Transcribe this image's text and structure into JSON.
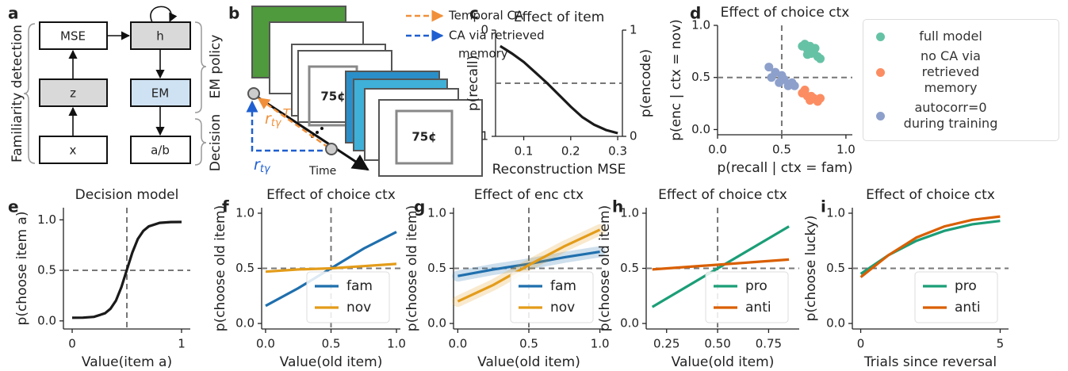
{
  "diagram_a": {
    "panel": "a",
    "nodes": [
      "MSE",
      "h",
      "z",
      "EM",
      "x",
      "a/b"
    ],
    "groups": [
      "Familiarity detection",
      "EM policy",
      "Decision"
    ]
  },
  "illustration_b": {
    "panel": "b",
    "legend": [
      {
        "lines": [
          "Temporal CA"
        ]
      },
      {
        "lines": [
          "CA via retrieved",
          "memory"
        ]
      }
    ],
    "card_text": "75¢",
    "time_label": "Time",
    "temporal_label": {
      "base": "r",
      "sub": "tγ",
      "sup": "T"
    },
    "retrieved_label": {
      "base": "r",
      "sub": "tγ"
    }
  },
  "chart_data": [
    {
      "type": "line",
      "panel": "c",
      "title": "Effect of item",
      "xlabel": "Reconstruction MSE",
      "ylabel": "p(recall)",
      "y2label": "p(encode)",
      "x": [
        0.05,
        0.075,
        0.1,
        0.125,
        0.15,
        0.175,
        0.2,
        0.225,
        0.25,
        0.275,
        0.3
      ],
      "series": [
        {
          "color": "#1a1a1a",
          "axis": "y2",
          "values": [
            0.85,
            0.78,
            0.7,
            0.6,
            0.5,
            0.39,
            0.28,
            0.18,
            0.11,
            0.06,
            0.03
          ]
        }
      ],
      "xlim": [
        0.04,
        0.31
      ],
      "xticks": [
        0.1,
        0.2,
        0.3
      ],
      "ylim": [
        1,
        0
      ],
      "yticks": [
        0,
        1
      ],
      "y2lim": [
        0,
        1
      ],
      "y2ticks": [
        0,
        1
      ],
      "hline": 0.5
    },
    {
      "type": "scatter",
      "panel": "d",
      "title": "Effect of choice ctx",
      "xlabel": "p(recall | ctx = fam)",
      "ylabel": "p(enc | ctx = nov)",
      "xlim": [
        0,
        1.05
      ],
      "ylim": [
        -0.05,
        1.0
      ],
      "xticks": [
        {
          "value": 0,
          "label": "0.0"
        },
        0.5,
        {
          "value": 1,
          "label": "1.0"
        }
      ],
      "yticks": [
        {
          "value": 0,
          "label": "0.0"
        },
        0.5,
        {
          "value": 1,
          "label": "1.0"
        }
      ],
      "hline": 0.5,
      "vline": 0.5,
      "legend": "right",
      "series": [
        {
          "name": "full model",
          "color": "#66c2a5",
          "x": [
            0.66,
            0.68,
            0.7,
            0.7,
            0.72,
            0.73,
            0.75,
            0.76,
            0.78,
            0.8
          ],
          "values": [
            0.8,
            0.82,
            0.77,
            0.72,
            0.8,
            0.73,
            0.75,
            0.78,
            0.7,
            0.68
          ]
        },
        {
          "name": "no CA via retrieved memory",
          "color": "#fc8d62",
          "x": [
            0.66,
            0.68,
            0.7,
            0.72,
            0.73,
            0.75,
            0.78,
            0.8
          ],
          "values": [
            0.35,
            0.38,
            0.32,
            0.28,
            0.32,
            0.3,
            0.27,
            0.3
          ]
        },
        {
          "name": "autocorr=0 during training",
          "color": "#8da0cb",
          "x": [
            0.4,
            0.42,
            0.45,
            0.48,
            0.5,
            0.52,
            0.55,
            0.58,
            0.6
          ],
          "values": [
            0.6,
            0.5,
            0.55,
            0.45,
            0.52,
            0.48,
            0.42,
            0.45,
            0.42
          ]
        }
      ]
    },
    {
      "type": "line",
      "panel": "e",
      "title": "Decision model",
      "xlabel": "Value(item a)",
      "ylabel": "p(choose item a)",
      "x": [
        0,
        0.1,
        0.2,
        0.3,
        0.35,
        0.4,
        0.45,
        0.5,
        0.55,
        0.6,
        0.65,
        0.7,
        0.8,
        0.9,
        1
      ],
      "series": [
        {
          "color": "#1a1a1a",
          "values": [
            0.031,
            0.032,
            0.04,
            0.075,
            0.12,
            0.2,
            0.334,
            0.505,
            0.676,
            0.81,
            0.89,
            0.935,
            0.97,
            0.978,
            0.979
          ]
        }
      ],
      "xlim": [
        -0.08,
        1.08
      ],
      "xticks": [
        0,
        1
      ],
      "ylim": [
        -0.08,
        1.12
      ],
      "yticks": [
        {
          "value": 0,
          "label": "0.0"
        },
        0.5,
        {
          "value": 1,
          "label": "1.0"
        }
      ],
      "hline": 0.5,
      "vline": 0.5
    },
    {
      "type": "line",
      "panel": "f",
      "title": "Effect of choice ctx",
      "xlabel": "Value(old item)",
      "ylabel": "p(choose old item)",
      "x": [
        0,
        0.25,
        0.5,
        0.75,
        1
      ],
      "series": [
        {
          "name": "fam",
          "color": "#1f6fad",
          "values": [
            0.16,
            0.32,
            0.5,
            0.68,
            0.83
          ]
        },
        {
          "name": "nov",
          "color": "#e39c1a",
          "values": [
            0.47,
            0.49,
            0.5,
            0.52,
            0.54
          ]
        }
      ],
      "xlim": [
        -0.03,
        1.03
      ],
      "xticks": [
        {
          "value": 0,
          "label": "0.0"
        },
        0.5,
        {
          "value": 1,
          "label": "1.0"
        }
      ],
      "ylim": [
        -0.05,
        1.05
      ],
      "yticks": [
        {
          "value": 0,
          "label": "0.0"
        },
        0.5,
        {
          "value": 1,
          "label": "1.0"
        }
      ],
      "hline": 0.5,
      "vline": 0.5,
      "legend": "lower right"
    },
    {
      "type": "line",
      "panel": "g",
      "title": "Effect of enc ctx",
      "xlabel": "Value(old item)",
      "ylabel": "p(choose old item)",
      "x": [
        0,
        0.25,
        0.5,
        0.75,
        1
      ],
      "series": [
        {
          "name": "fam",
          "color": "#1f6fad",
          "values": [
            0.43,
            0.49,
            0.54,
            0.6,
            0.65
          ]
        },
        {
          "name": "nov",
          "color": "#e39c1a",
          "values": [
            0.2,
            0.35,
            0.53,
            0.7,
            0.85
          ]
        }
      ],
      "ci_band": true,
      "xlim": [
        -0.03,
        1.03
      ],
      "xticks": [
        {
          "value": 0,
          "label": "0.0"
        },
        0.5,
        {
          "value": 1,
          "label": "1.0"
        }
      ],
      "ylim": [
        -0.05,
        1.05
      ],
      "yticks": [
        {
          "value": 0,
          "label": "0.0"
        },
        0.5,
        {
          "value": 1,
          "label": "1.0"
        }
      ],
      "hline": 0.5,
      "vline": 0.5,
      "legend": "lower right"
    },
    {
      "type": "line",
      "panel": "h",
      "title": "Effect of choice ctx",
      "xlabel": "Value(old item)",
      "ylabel": "p(choose old item)",
      "x": [
        0.18,
        0.85
      ],
      "series": [
        {
          "name": "pro",
          "color": "#1b9e77",
          "values": [
            0.15,
            0.88
          ]
        },
        {
          "name": "anti",
          "color": "#d95f02",
          "values": [
            0.49,
            0.58
          ]
        }
      ],
      "xlim": [
        0.15,
        0.9
      ],
      "xticks": [
        0.25,
        {
          "value": 0.5,
          "label": "0.50"
        },
        0.75
      ],
      "ylim": [
        -0.05,
        1.05
      ],
      "yticks": [
        {
          "value": 0,
          "label": "0.0"
        },
        0.5,
        {
          "value": 1,
          "label": "1.0"
        }
      ],
      "hline": 0.5,
      "vline": 0.5,
      "legend": "lower right"
    },
    {
      "type": "line",
      "panel": "i",
      "title": "Effect of choice ctx",
      "xlabel": "Trials since reversal",
      "ylabel": "p(choose lucky)",
      "x": [
        0,
        1,
        2,
        3,
        4,
        5
      ],
      "series": [
        {
          "name": "pro",
          "color": "#1b9e77",
          "values": [
            0.45,
            0.62,
            0.75,
            0.84,
            0.9,
            0.93
          ]
        },
        {
          "name": "anti",
          "color": "#d95f02",
          "values": [
            0.42,
            0.62,
            0.78,
            0.88,
            0.94,
            0.97
          ]
        }
      ],
      "xlim": [
        -0.3,
        5.3
      ],
      "xticks": [
        0,
        5
      ],
      "ylim": [
        -0.05,
        1.05
      ],
      "yticks": [
        {
          "value": 0,
          "label": "0.0"
        },
        0.5,
        {
          "value": 1,
          "label": "1.0"
        }
      ],
      "hline": 0.5,
      "legend": "lower right"
    }
  ]
}
